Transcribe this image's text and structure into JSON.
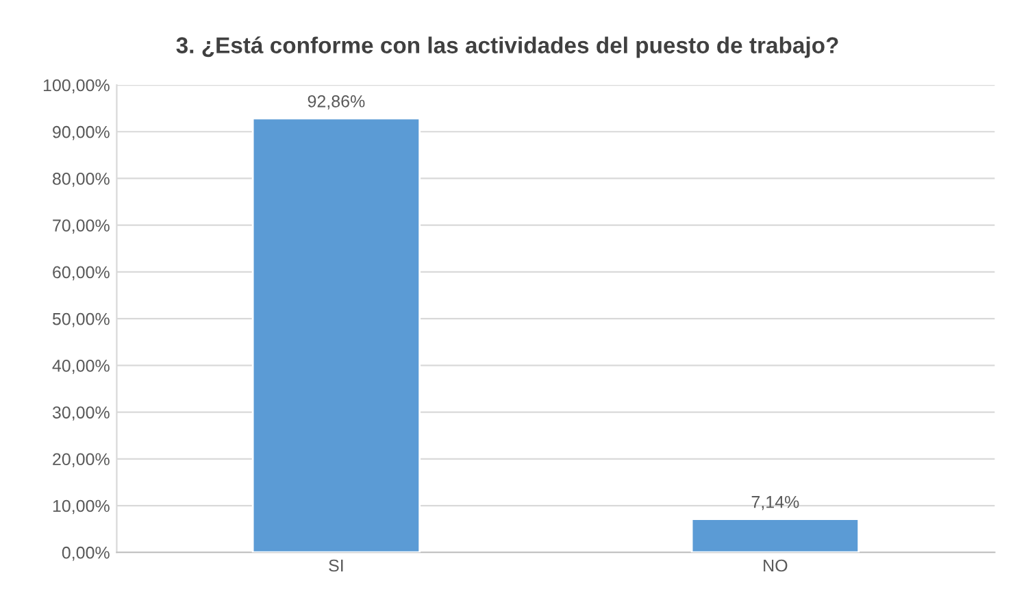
{
  "chart_data": {
    "type": "bar",
    "title": "3. ¿Está conforme con las actividades del puesto de trabajo?",
    "categories": [
      "SI",
      "NO"
    ],
    "values": [
      92.86,
      7.14
    ],
    "value_labels": [
      "92,86%",
      "7,14%"
    ],
    "color": "#5b9bd5",
    "ylim": [
      0,
      100
    ],
    "yticks": [
      {
        "value": 0,
        "label": "0,00%"
      },
      {
        "value": 10,
        "label": "10,00%"
      },
      {
        "value": 20,
        "label": "20,00%"
      },
      {
        "value": 30,
        "label": "30,00%"
      },
      {
        "value": 40,
        "label": "40,00%"
      },
      {
        "value": 50,
        "label": "50,00%"
      },
      {
        "value": 60,
        "label": "60,00%"
      },
      {
        "value": 70,
        "label": "70,00%"
      },
      {
        "value": 80,
        "label": "80,00%"
      },
      {
        "value": 90,
        "label": "90,00%"
      },
      {
        "value": 100,
        "label": "100,00%"
      }
    ],
    "grid": "y"
  }
}
